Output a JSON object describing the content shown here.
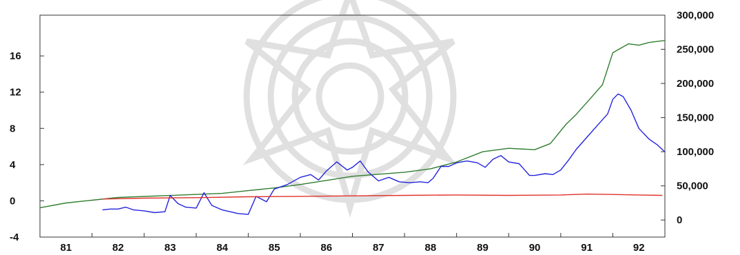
{
  "chart_data": {
    "type": "line",
    "title": "",
    "xlabel": "",
    "ylabel": "",
    "xlim": [
      80.5,
      92.5
    ],
    "ylim_left": [
      -4,
      20.5
    ],
    "ylim_right": [
      -25000,
      300000
    ],
    "grid": false,
    "legend": "none",
    "x_ticks": [
      {
        "v": 81,
        "label": "81"
      },
      {
        "v": 82,
        "label": "82"
      },
      {
        "v": 83,
        "label": "83"
      },
      {
        "v": 84,
        "label": "84"
      },
      {
        "v": 85,
        "label": "85"
      },
      {
        "v": 86,
        "label": "86"
      },
      {
        "v": 87,
        "label": "87"
      },
      {
        "v": 88,
        "label": "88"
      },
      {
        "v": 89,
        "label": "89"
      },
      {
        "v": 90,
        "label": "90"
      },
      {
        "v": 91,
        "label": "91"
      },
      {
        "v": 92,
        "label": "92"
      }
    ],
    "left_ticks": [
      {
        "v": -4,
        "label": "-4"
      },
      {
        "v": 0,
        "label": "0"
      },
      {
        "v": 4,
        "label": "4"
      },
      {
        "v": 8,
        "label": "8"
      },
      {
        "v": 12,
        "label": "12"
      },
      {
        "v": 16,
        "label": "16"
      }
    ],
    "right_ticks": [
      {
        "v": 0,
        "label": "0"
      },
      {
        "v": 50000,
        "label": "50,000"
      },
      {
        "v": 100000,
        "label": "100,000"
      },
      {
        "v": 150000,
        "label": "150,000"
      },
      {
        "v": 200000,
        "label": "200,000"
      },
      {
        "v": 250000,
        "label": "250,000"
      },
      {
        "v": 300000,
        "label": "300,000"
      }
    ],
    "series": [
      {
        "color": "#2f7d2f",
        "axis": "right",
        "x": [
          80.5,
          81.0,
          81.5,
          82.0,
          83.0,
          84.0,
          84.5,
          85.0,
          85.5,
          86.0,
          86.5,
          87.0,
          87.5,
          88.0,
          88.5,
          89.0,
          89.5,
          90.0,
          90.3,
          90.6,
          90.8,
          91.0,
          91.3,
          91.5,
          91.8,
          92.0,
          92.2,
          92.5
        ],
        "values": [
          18000,
          25000,
          29000,
          33000,
          36000,
          39000,
          43000,
          47000,
          52000,
          58000,
          64000,
          67000,
          70000,
          75000,
          85000,
          100000,
          105000,
          103000,
          112000,
          140000,
          155000,
          172000,
          198000,
          245000,
          258000,
          256000,
          260000,
          263000
        ]
      },
      {
        "color": "#2222dd",
        "axis": "left",
        "x": [
          81.7,
          81.85,
          82.0,
          82.15,
          82.3,
          82.5,
          82.7,
          82.9,
          83.0,
          83.15,
          83.3,
          83.5,
          83.65,
          83.8,
          84.0,
          84.15,
          84.3,
          84.5,
          84.65,
          84.85,
          85.0,
          85.25,
          85.5,
          85.7,
          85.85,
          86.0,
          86.2,
          86.4,
          86.5,
          86.65,
          86.8,
          87.0,
          87.2,
          87.4,
          87.6,
          87.8,
          87.95,
          88.05,
          88.2,
          88.35,
          88.5,
          88.7,
          88.9,
          89.05,
          89.2,
          89.35,
          89.5,
          89.7,
          89.9,
          90.0,
          90.2,
          90.35,
          90.5,
          90.65,
          90.8,
          91.0,
          91.2,
          91.4,
          91.5,
          91.6,
          91.7,
          91.85,
          92.0,
          92.2,
          92.35,
          92.5
        ],
        "values": [
          -1.0,
          -0.9,
          -0.9,
          -0.7,
          -1.0,
          -1.1,
          -1.3,
          -1.2,
          0.6,
          -0.3,
          -0.7,
          -0.8,
          0.9,
          -0.5,
          -1.0,
          -1.2,
          -1.4,
          -1.5,
          0.5,
          -0.1,
          1.3,
          1.8,
          2.6,
          2.9,
          2.3,
          3.3,
          4.3,
          3.4,
          3.7,
          4.4,
          3.2,
          2.2,
          2.6,
          2.1,
          2.0,
          2.1,
          2.0,
          2.5,
          3.8,
          3.8,
          4.2,
          4.4,
          4.2,
          3.7,
          4.6,
          5.0,
          4.3,
          4.1,
          2.8,
          2.8,
          3.0,
          2.9,
          3.4,
          4.5,
          5.7,
          7.0,
          8.3,
          9.6,
          11.2,
          11.8,
          11.5,
          10.0,
          8.0,
          6.8,
          6.2,
          5.4
        ]
      },
      {
        "color": "#e0302a",
        "axis": "left",
        "x": [
          81.7,
          82.5,
          83.5,
          84.5,
          85.5,
          86.5,
          87.5,
          88.5,
          89.5,
          90.5,
          91.0,
          91.5,
          92.0,
          92.45
        ],
        "values": [
          0.2,
          0.3,
          0.35,
          0.45,
          0.5,
          0.55,
          0.6,
          0.65,
          0.6,
          0.65,
          0.75,
          0.7,
          0.65,
          0.6
        ]
      }
    ]
  }
}
